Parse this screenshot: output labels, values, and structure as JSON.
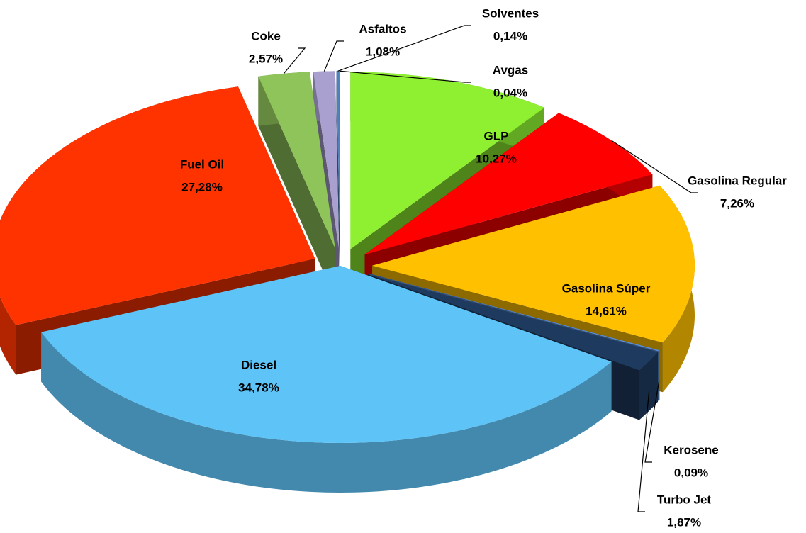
{
  "chart_data": {
    "type": "pie3d",
    "categories": [
      "GLP",
      "Gasolina Regular",
      "Gasolina Súper",
      "Kerosene",
      "Turbo Jet",
      "Diesel",
      "Fuel Oil",
      "Coke",
      "Asfaltos",
      "Solventes",
      "Avgas"
    ],
    "values": [
      10.27,
      7.26,
      14.61,
      0.09,
      1.87,
      34.78,
      27.28,
      2.57,
      1.08,
      0.14,
      0.04
    ],
    "value_labels": [
      "10,27%",
      "7,26%",
      "14,61%",
      "0,09%",
      "1,87%",
      "34,78%",
      "27,28%",
      "2,57%",
      "1,08%",
      "0,14%",
      "0,04%"
    ],
    "colors": [
      "#8ef030",
      "#ff0000",
      "#ffc000",
      "#5b8fd6",
      "#1f3a5f",
      "#5ec4f7",
      "#ff3300",
      "#8fc45a",
      "#a9a0d0",
      "#4f81bd",
      "#3c6aa8"
    ]
  }
}
